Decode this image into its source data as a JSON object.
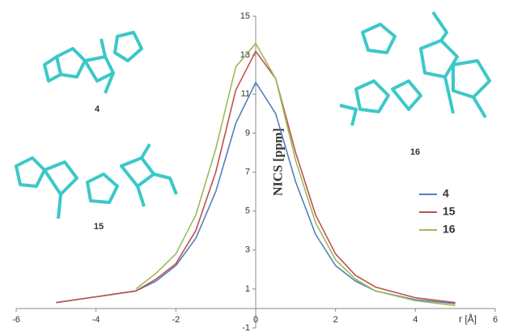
{
  "chart_data": {
    "type": "line",
    "x_label": "r [Å]",
    "y_label": "NICS [ppm]",
    "annotations": [
      "4",
      "15",
      "16"
    ],
    "x": [
      -5,
      -4,
      -3,
      -2.5,
      -2,
      -1.5,
      -1,
      -0.5,
      0,
      0.5,
      1,
      1.5,
      2,
      2.5,
      3,
      4,
      5
    ],
    "series": [
      {
        "name": "4",
        "color": "#4f81bd",
        "values": [
          0.3,
          0.6,
          0.9,
          1.4,
          2.2,
          3.6,
          6.0,
          9.5,
          11.6,
          10.0,
          6.5,
          3.8,
          2.2,
          1.4,
          0.9,
          0.45,
          0.25
        ]
      },
      {
        "name": "15",
        "color": "#c0504d",
        "values": [
          0.3,
          0.6,
          0.9,
          1.5,
          2.3,
          4.0,
          7.0,
          11.2,
          13.2,
          11.8,
          8.0,
          4.8,
          2.8,
          1.7,
          1.1,
          0.55,
          0.3
        ]
      },
      {
        "name": "16",
        "color": "#9bbb59",
        "values": [
          null,
          null,
          1.0,
          1.8,
          2.8,
          4.8,
          8.2,
          12.4,
          13.6,
          11.8,
          7.6,
          4.4,
          2.5,
          1.5,
          0.9,
          0.4,
          0.15
        ]
      }
    ],
    "xlim": [
      -6,
      6
    ],
    "xticks": [
      -6,
      -4,
      -2,
      0,
      2,
      4,
      6
    ],
    "ylim": [
      -1,
      15
    ],
    "yticks": [
      -1,
      1,
      3,
      5,
      7,
      9,
      11,
      13,
      15
    ],
    "grid": false,
    "legend": "right"
  }
}
